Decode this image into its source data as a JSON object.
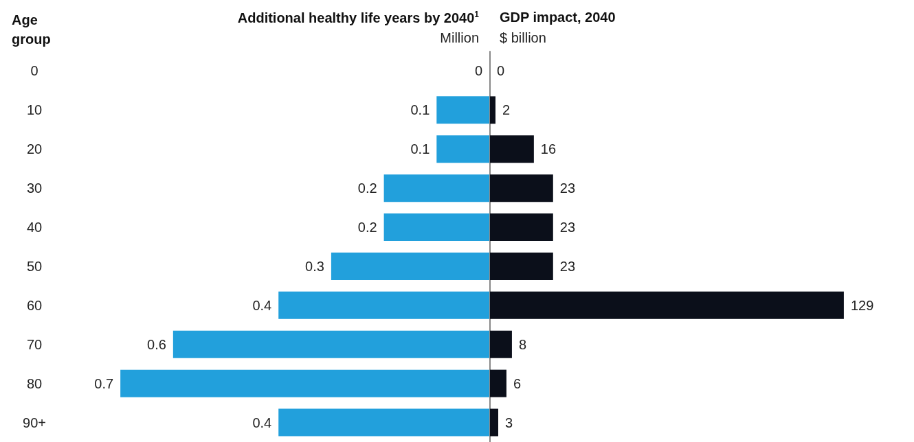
{
  "chart_data": [
    {
      "type": "bar",
      "orientation": "horizontal",
      "title": "Additional healthy life years by 2040$^{1}$",
      "subtitle": "Million",
      "ylabel": "Age group",
      "categories": [
        "0",
        "10",
        "20",
        "30",
        "40",
        "50",
        "60",
        "70",
        "80",
        "90+"
      ],
      "values": [
        0,
        0.1,
        0.1,
        0.2,
        0.2,
        0.3,
        0.4,
        0.6,
        0.7,
        0.4
      ],
      "color": "#22a0dc",
      "data_labels": true,
      "tick_labels": "y"
    },
    {
      "type": "bar",
      "orientation": "horizontal",
      "title": "GDP impact, 2040",
      "subtitle": "$ billion",
      "values": [
        0,
        2,
        16,
        23,
        23,
        23,
        129,
        8,
        6,
        3
      ],
      "color": "#0b0f1a",
      "data_labels": true,
      "tick_labels": false
    }
  ]
}
